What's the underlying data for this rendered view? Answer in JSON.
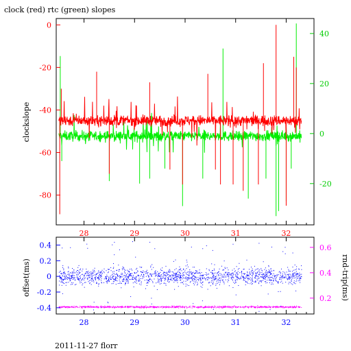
{
  "chart_data": [
    {
      "type": "line",
      "title": "clock (red) rtc (green) slopes",
      "xlabel": "",
      "ylabel": "clockslope",
      "xlim": [
        27.45,
        32.55
      ],
      "ylim": [
        -94,
        3
      ],
      "x_ticks": [
        "28",
        "29",
        "30",
        "31",
        "32"
      ],
      "y_ticks_left": [
        "0",
        "-20",
        "-40",
        "-60",
        "-80"
      ],
      "y_ticks_right": [
        "40",
        "20",
        "0",
        "-20"
      ],
      "y2lim": [
        -36.5,
        46
      ],
      "series": [
        {
          "name": "clock",
          "color": "#ff0000",
          "axis": "left",
          "x_range": [
            27.5,
            32.3
          ],
          "baseline": -45,
          "noise": 2.5,
          "spikes": [
            {
              "x": 27.52,
              "y": -89
            },
            {
              "x": 27.55,
              "y": -30
            },
            {
              "x": 28.25,
              "y": -22
            },
            {
              "x": 28.5,
              "y": -70
            },
            {
              "x": 29.3,
              "y": -27
            },
            {
              "x": 29.7,
              "y": -68
            },
            {
              "x": 29.95,
              "y": -75
            },
            {
              "x": 30.45,
              "y": -23
            },
            {
              "x": 30.6,
              "y": -68
            },
            {
              "x": 30.7,
              "y": -75
            },
            {
              "x": 30.95,
              "y": -75
            },
            {
              "x": 31.15,
              "y": -78
            },
            {
              "x": 31.45,
              "y": -75
            },
            {
              "x": 31.55,
              "y": -18
            },
            {
              "x": 31.8,
              "y": 0
            },
            {
              "x": 32.0,
              "y": -85
            },
            {
              "x": 32.15,
              "y": -15
            },
            {
              "x": 32.2,
              "y": -20
            }
          ]
        },
        {
          "name": "rtc",
          "color": "#00ee00",
          "axis": "right",
          "x_range": [
            27.5,
            32.3
          ],
          "baseline": -1,
          "noise": 2,
          "spikes": [
            {
              "x": 27.53,
              "y": 31
            },
            {
              "x": 27.56,
              "y": -11
            },
            {
              "x": 28.5,
              "y": -19
            },
            {
              "x": 29.1,
              "y": -20
            },
            {
              "x": 29.3,
              "y": -18
            },
            {
              "x": 29.6,
              "y": -14
            },
            {
              "x": 29.95,
              "y": -29
            },
            {
              "x": 30.35,
              "y": -18
            },
            {
              "x": 30.75,
              "y": 34
            },
            {
              "x": 31.25,
              "y": -26
            },
            {
              "x": 31.6,
              "y": -18
            },
            {
              "x": 31.8,
              "y": -33
            },
            {
              "x": 31.85,
              "y": -31
            },
            {
              "x": 32.0,
              "y": -27
            },
            {
              "x": 32.1,
              "y": -14
            },
            {
              "x": 32.2,
              "y": 44
            }
          ]
        }
      ]
    },
    {
      "type": "scatter",
      "title": "",
      "xlabel": "",
      "ylabel": "offset(ms)",
      "y2label": "rnd-trip(ms)",
      "xlim": [
        27.45,
        32.55
      ],
      "ylim": [
        -0.48,
        0.5
      ],
      "y2lim": [
        0.075,
        0.68
      ],
      "x_ticks": [
        "28",
        "29",
        "30",
        "31",
        "32"
      ],
      "y_ticks_left": [
        "0.4",
        "0.2",
        "0",
        "-0.2",
        "-0.4"
      ],
      "y_ticks_right": [
        "0.6",
        "0.4",
        "0.2"
      ],
      "series": [
        {
          "name": "offset",
          "color": "#0000ff",
          "axis": "left",
          "x_range": [
            27.5,
            32.3
          ],
          "center": 0.0,
          "spread": 0.18
        },
        {
          "name": "rnd-trip",
          "color": "#ff00ff",
          "axis": "right",
          "x_range": [
            27.5,
            32.3
          ],
          "center": 0.13,
          "spread": 0.012
        }
      ]
    }
  ],
  "footer": "2011-11-27 florr"
}
